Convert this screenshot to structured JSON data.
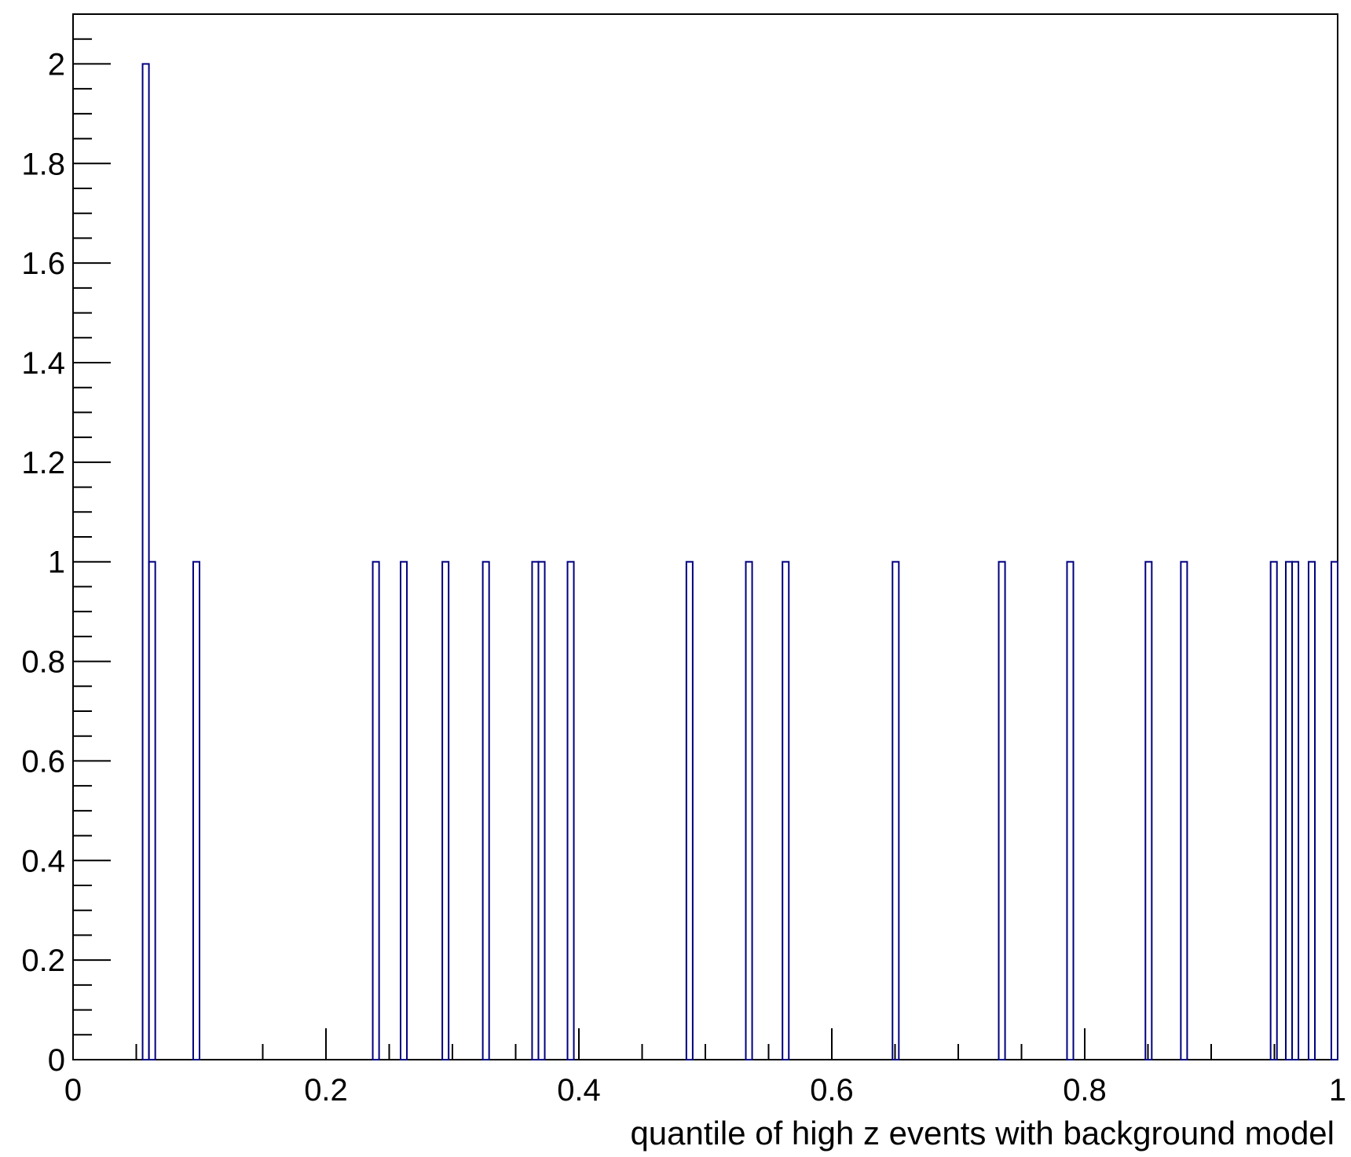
{
  "chart_data": {
    "type": "histogram",
    "title": "",
    "xlabel": "quantile of high z events with background model",
    "ylabel": "",
    "xlim": [
      0,
      1
    ],
    "ylim": [
      0,
      2.1
    ],
    "bin_width": 0.005,
    "x_ticks": [
      0,
      0.2,
      0.4,
      0.6,
      0.8,
      1
    ],
    "x_tick_labels": [
      "0",
      "0.2",
      "0.4",
      "0.6",
      "0.8",
      "1"
    ],
    "y_ticks": [
      0,
      0.2,
      0.4,
      0.6,
      0.8,
      1,
      1.2,
      1.4,
      1.6,
      1.8,
      2
    ],
    "y_tick_labels": [
      "0",
      "0.2",
      "0.4",
      "0.6",
      "0.8",
      "1",
      "1.2",
      "1.4",
      "1.6",
      "1.8",
      "2"
    ],
    "grid": false,
    "legend": "none",
    "series": [
      {
        "color": "#000080",
        "bins": [
          {
            "x": 0.055,
            "count": 2
          },
          {
            "x": 0.06,
            "count": 1
          },
          {
            "x": 0.095,
            "count": 1
          },
          {
            "x": 0.237,
            "count": 1
          },
          {
            "x": 0.259,
            "count": 1
          },
          {
            "x": 0.292,
            "count": 1
          },
          {
            "x": 0.324,
            "count": 1
          },
          {
            "x": 0.363,
            "count": 1
          },
          {
            "x": 0.368,
            "count": 1
          },
          {
            "x": 0.391,
            "count": 1
          },
          {
            "x": 0.485,
            "count": 1
          },
          {
            "x": 0.532,
            "count": 1
          },
          {
            "x": 0.561,
            "count": 1
          },
          {
            "x": 0.648,
            "count": 1
          },
          {
            "x": 0.732,
            "count": 1
          },
          {
            "x": 0.786,
            "count": 1
          },
          {
            "x": 0.848,
            "count": 1
          },
          {
            "x": 0.876,
            "count": 1
          },
          {
            "x": 0.947,
            "count": 1
          },
          {
            "x": 0.959,
            "count": 1
          },
          {
            "x": 0.964,
            "count": 1
          },
          {
            "x": 0.977,
            "count": 1
          },
          {
            "x": 0.995,
            "count": 1
          }
        ]
      }
    ]
  }
}
